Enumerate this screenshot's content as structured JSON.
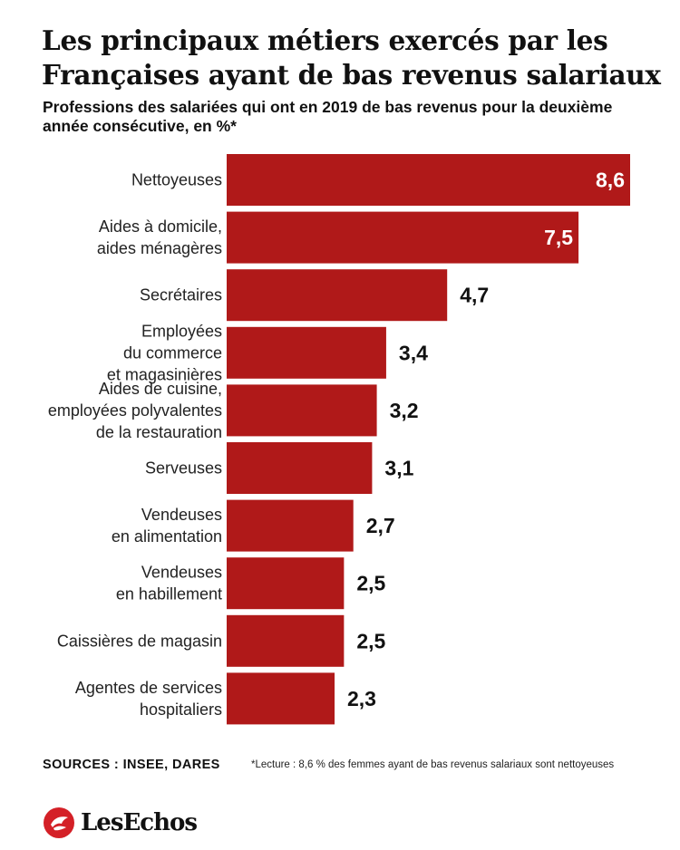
{
  "header": {
    "title": "Les principaux métiers exercés par les Françaises ayant de bas revenus salariaux",
    "subtitle": "Professions des salariées qui ont en 2019 de bas revenus pour la deuxième année consécutive, en %*"
  },
  "chart_data": {
    "type": "bar",
    "orientation": "horizontal",
    "title": "Les principaux métiers exercés par les Françaises ayant de bas revenus salariaux",
    "subtitle": "Professions des salariées qui ont en 2019 de bas revenus pour la deuxième année consécutive, en %*",
    "categories": [
      "Nettoyeuses",
      "Aides à domicile,\naides ménagères",
      "Secrétaires",
      "Employées\ndu commerce\net magasinières",
      "Aides de cuisine,\nemployées polyvalentes\nde la restauration",
      "Serveuses",
      "Vendeuses\nen alimentation",
      "Vendeuses\nen habillement",
      "Caissières de magasin",
      "Agentes de services\nhospitaliers"
    ],
    "values": [
      8.6,
      7.5,
      4.7,
      3.4,
      3.2,
      3.1,
      2.7,
      2.5,
      2.5,
      2.3
    ],
    "value_labels": [
      "8,6",
      "7,5",
      "4,7",
      "3,4",
      "3,2",
      "3,1",
      "2,7",
      "2,5",
      "2,5",
      "2,3"
    ],
    "xlim": [
      0,
      8.6
    ],
    "grid": false,
    "bar_color": "#b01919"
  },
  "footer": {
    "sources": "SOURCES : INSEE, DARES",
    "footnote": "*Lecture : 8,6 % des femmes ayant de bas revenus salariaux sont nettoyeuses",
    "brand": "LesEchos"
  },
  "colors": {
    "accent": "#b01919",
    "text": "#111111",
    "logo": "#d42027"
  },
  "icons": {
    "logo": "les-echos-logo-icon"
  }
}
